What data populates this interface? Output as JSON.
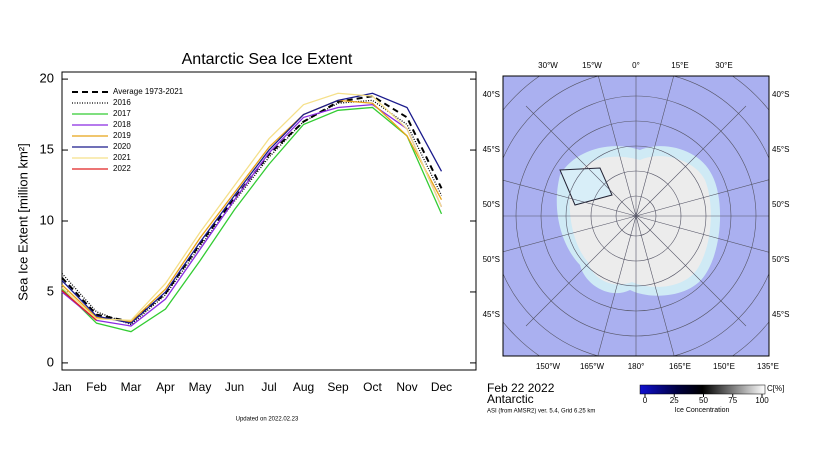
{
  "chart_data": {
    "type": "line",
    "title": "Antarctic Sea Ice Extent",
    "y_label": "Sea Ice Extent [million km²]",
    "categories": [
      "Jan",
      "Feb",
      "Mar",
      "Apr",
      "May",
      "Jun",
      "Jul",
      "Aug",
      "Sep",
      "Oct",
      "Nov",
      "Dec"
    ],
    "ylim": [
      -0.5,
      20.5
    ],
    "yticks": [
      0,
      5,
      10,
      15,
      20
    ],
    "series": [
      {
        "name": "Average 1973-2021",
        "color": "#000000",
        "style": "dashed",
        "values": [
          6.0,
          3.4,
          2.9,
          4.9,
          8.4,
          11.6,
          14.7,
          17.0,
          18.4,
          18.8,
          17.3,
          12.3
        ]
      },
      {
        "name": "2016",
        "color": "#000000",
        "style": "dotted",
        "values": [
          6.3,
          3.6,
          2.7,
          4.8,
          8.2,
          11.4,
          14.5,
          17.0,
          18.3,
          18.5,
          16.8,
          11.8
        ]
      },
      {
        "name": "2017",
        "color": "#33cc33",
        "style": "solid",
        "values": [
          5.2,
          2.8,
          2.2,
          3.8,
          7.2,
          10.8,
          14.0,
          16.8,
          17.8,
          18.0,
          16.0,
          10.5
        ]
      },
      {
        "name": "2018",
        "color": "#8a2be2",
        "style": "solid",
        "values": [
          5.0,
          3.0,
          2.6,
          4.5,
          8.0,
          11.5,
          14.8,
          17.3,
          18.0,
          18.2,
          16.5,
          11.0
        ]
      },
      {
        "name": "2019",
        "color": "#e8a317",
        "style": "solid",
        "values": [
          5.5,
          3.2,
          2.9,
          5.2,
          8.8,
          12.0,
          15.2,
          17.5,
          18.5,
          18.3,
          16.0,
          11.5
        ]
      },
      {
        "name": "2020",
        "color": "#1a1a8c",
        "style": "solid",
        "values": [
          5.8,
          3.3,
          2.8,
          5.0,
          8.5,
          11.8,
          15.0,
          17.5,
          18.5,
          19.0,
          18.0,
          13.5
        ]
      },
      {
        "name": "2021",
        "color": "#f5e08a",
        "style": "solid",
        "values": [
          5.3,
          3.1,
          3.0,
          5.6,
          9.2,
          12.5,
          15.8,
          18.2,
          19.0,
          18.8,
          16.5,
          11.0
        ]
      },
      {
        "name": "2022",
        "color": "#e02020",
        "style": "solid",
        "values": [
          5.1,
          3.0,
          null,
          null,
          null,
          null,
          null,
          null,
          null,
          null,
          null,
          null
        ]
      }
    ],
    "footnote": "Updated on 2022.02.23"
  },
  "map": {
    "top_labels": [
      "30°W",
      "15°W",
      "0°",
      "15°E",
      "30°E"
    ],
    "left_labels": [
      "40°S",
      "45°S",
      "50°S",
      "50°S",
      "45°S"
    ],
    "right_labels": [
      "40°S",
      "45°S",
      "50°S",
      "50°S",
      "45°S"
    ],
    "bottom_labels": [
      "150°W",
      "165°W",
      "180°",
      "165°E",
      "150°E",
      "135°E"
    ],
    "date": "Feb 22 2022",
    "region": "Antarctic",
    "source": "ASI (from AMSR2) ver. 5.4,  Grid 6.25 km",
    "colorbar_ticks": [
      0,
      25,
      50,
      75,
      100
    ],
    "colorbar_unit": "C[%]",
    "colorbar_label": "Ice Concentration"
  }
}
